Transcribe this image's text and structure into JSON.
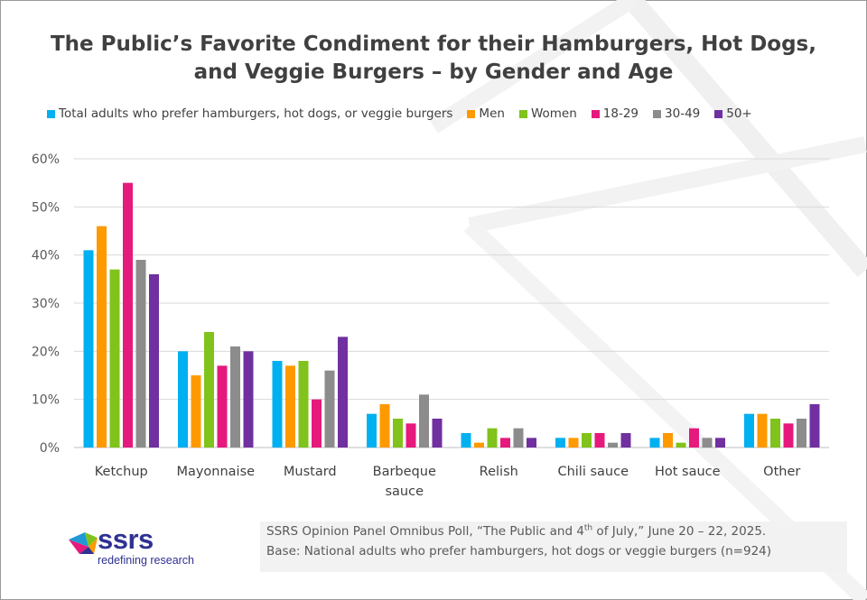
{
  "title_line1": "The Public’s Favorite Condiment for their Hamburgers, Hot Dogs,",
  "title_line2": "and Veggie Burgers – by Gender and Age",
  "logo": {
    "name": "ssrs",
    "tagline": "redefining research"
  },
  "source": {
    "line1_a": "SSRS Opinion Panel Omnibus Poll, “The Public and 4",
    "line1_sup": "th",
    "line1_b": " of July,” June 20 – 22, 2025.",
    "line2": "Base: National adults who prefer hamburgers, hot dogs or veggie burgers (n=924)"
  },
  "chart_data": {
    "type": "bar",
    "ylim": [
      0,
      60
    ],
    "yticks": [
      "0%",
      "10%",
      "20%",
      "30%",
      "40%",
      "50%",
      "60%"
    ],
    "grid": true,
    "legend_position": "top",
    "categories": [
      [
        "Ketchup"
      ],
      [
        "Mayonnaise"
      ],
      [
        "Mustard"
      ],
      [
        "Barbeque",
        "sauce"
      ],
      [
        "Relish"
      ],
      [
        "Chili sauce"
      ],
      [
        "Hot sauce"
      ],
      [
        "Other"
      ]
    ],
    "series": [
      {
        "name": "Total adults who prefer hamburgers, hot dogs, or veggie burgers",
        "color": "#00b0f0",
        "values": [
          41,
          20,
          18,
          7,
          3,
          2,
          2,
          7
        ]
      },
      {
        "name": "Men",
        "color": "#ff9900",
        "values": [
          46,
          15,
          17,
          9,
          1,
          2,
          3,
          7
        ]
      },
      {
        "name": "Women",
        "color": "#7fc31c",
        "values": [
          37,
          24,
          18,
          6,
          4,
          3,
          1,
          6
        ]
      },
      {
        "name": "18-29",
        "color": "#e6197d",
        "values": [
          55,
          17,
          10,
          5,
          2,
          3,
          4,
          5
        ]
      },
      {
        "name": "30-49",
        "color": "#8c8c8c",
        "values": [
          39,
          21,
          16,
          11,
          4,
          1,
          2,
          6
        ]
      },
      {
        "name": "50+",
        "color": "#7030a0",
        "values": [
          36,
          20,
          23,
          6,
          2,
          3,
          2,
          9
        ]
      }
    ]
  }
}
